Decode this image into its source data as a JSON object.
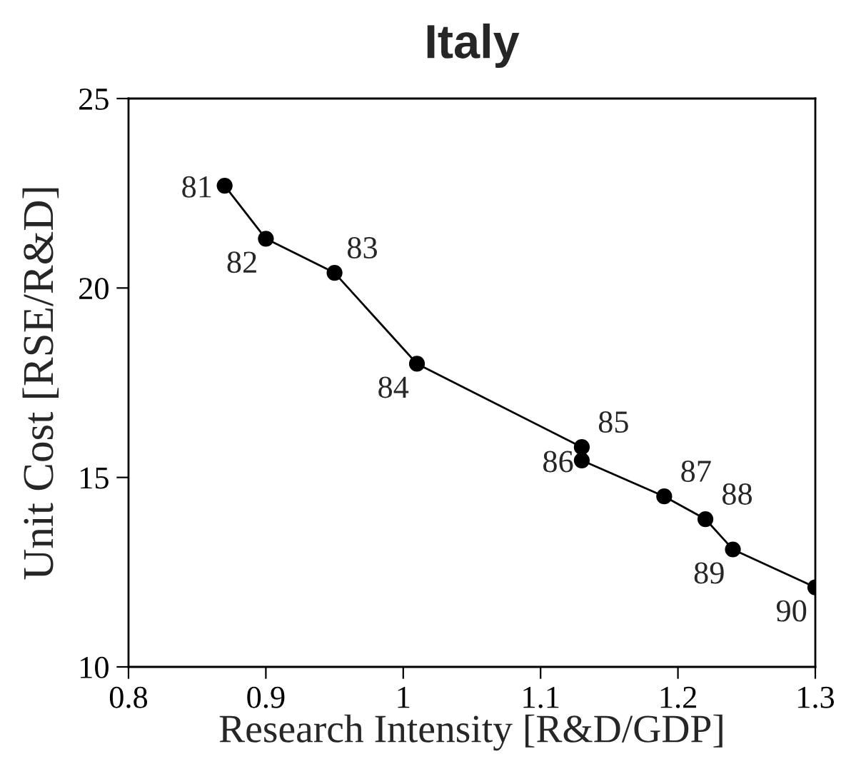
{
  "chart_data": {
    "type": "line",
    "title": "Italy",
    "xlabel": "Research Intensity [R&D/GDP]",
    "ylabel": "Unit Cost [RSE/R&D]",
    "series": [
      {
        "color": "#000000",
        "x": [
          0.87,
          0.9,
          0.95,
          1.01,
          1.13,
          1.13,
          1.19,
          1.22,
          1.24,
          1.3
        ],
        "values": [
          22.7,
          21.3,
          20.4,
          18.0,
          15.8,
          15.45,
          14.5,
          13.9,
          13.1,
          12.1
        ]
      }
    ],
    "annotations": [
      {
        "text": "81",
        "x": 0.87,
        "y": 22.7
      },
      {
        "text": "82",
        "x": 0.9,
        "y": 21.3
      },
      {
        "text": "83",
        "x": 0.95,
        "y": 20.4
      },
      {
        "text": "84",
        "x": 1.01,
        "y": 18.0
      },
      {
        "text": "85",
        "x": 1.13,
        "y": 15.8
      },
      {
        "text": "86",
        "x": 1.13,
        "y": 15.45
      },
      {
        "text": "87",
        "x": 1.19,
        "y": 14.5
      },
      {
        "text": "88",
        "x": 1.22,
        "y": 13.9
      },
      {
        "text": "89",
        "x": 1.24,
        "y": 13.1
      },
      {
        "text": "90",
        "x": 1.3,
        "y": 12.1
      }
    ],
    "xlim": [
      0.8,
      1.3
    ],
    "xticks": [
      0.8,
      0.9,
      1,
      1.1,
      1.2,
      1.3
    ],
    "ylim": [
      10,
      25
    ],
    "yticks": [
      10,
      15,
      20,
      25
    ],
    "marker": "circle",
    "line_style": "solid",
    "grid": false,
    "legend": false
  }
}
